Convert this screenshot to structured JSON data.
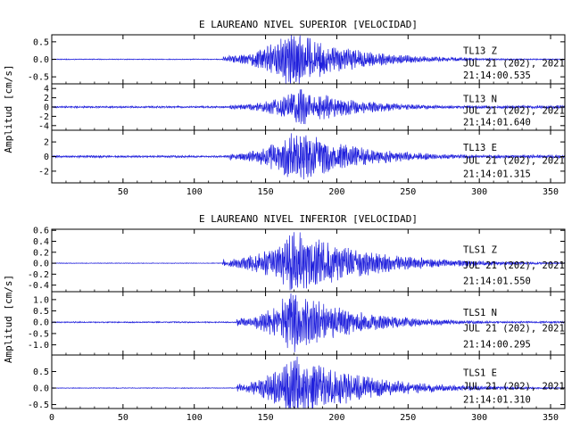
{
  "colors": {
    "trace": "#1f1fdc",
    "axis": "#000000"
  },
  "chart_data": [
    {
      "type": "line",
      "title": "E LAUREANO NIVEL SUPERIOR [VELOCIDAD]",
      "ylabel": "Amplitud [cm/s]",
      "xlabel": "",
      "xlim": [
        0,
        360
      ],
      "x_ticks": [
        "50",
        "100",
        "150",
        "200",
        "250",
        "300",
        "350"
      ],
      "x_tick_values": [
        50,
        100,
        150,
        200,
        250,
        300,
        350
      ],
      "panels": [
        {
          "station": "TL13",
          "component": "Z",
          "date": "JUL 21 (202), 2021",
          "time": "21:14:00.535",
          "ylim": [
            -0.7,
            0.7
          ],
          "y_ticks": [
            "0.5",
            "0.0",
            "-0.5"
          ],
          "y_tick_values": [
            0.5,
            0.0,
            -0.5
          ],
          "envelope": {
            "onset": 120,
            "peak": 168,
            "peak_amp": 0.75,
            "decay": 42,
            "pre_level": 0.015,
            "post_level": 0.02
          }
        },
        {
          "station": "TL13",
          "component": "N",
          "date": "JUL 21 (202), 2021",
          "time": "21:14:01.640",
          "ylim": [
            -5,
            5
          ],
          "y_ticks": [
            "4",
            "2",
            "0",
            "-2",
            "-4"
          ],
          "y_tick_values": [
            4,
            2,
            0,
            -2,
            -4
          ],
          "envelope": {
            "onset": 125,
            "peak": 175,
            "peak_amp": 3.6,
            "decay": 40,
            "pre_level": 0.05,
            "post_level": 0.08
          }
        },
        {
          "station": "TL13",
          "component": "E",
          "date": "JUL 21 (202), 2021",
          "time": "21:14:01.315",
          "ylim": [
            -3.6,
            3.6
          ],
          "y_ticks": [
            "2",
            "0",
            "-2"
          ],
          "y_tick_values": [
            2,
            0,
            -2
          ],
          "envelope": {
            "onset": 125,
            "peak": 170,
            "peak_amp": 3.3,
            "decay": 45,
            "pre_level": 0.04,
            "post_level": 0.06
          }
        }
      ]
    },
    {
      "type": "line",
      "title": "E LAUREANO NIVEL INFERIOR [VELOCIDAD]",
      "ylabel": "Amplitud [cm/s]",
      "xlabel": "",
      "xlim": [
        0,
        360
      ],
      "x_ticks": [
        "0",
        "50",
        "100",
        "150",
        "200",
        "250",
        "300",
        "350"
      ],
      "x_tick_values": [
        0,
        50,
        100,
        150,
        200,
        250,
        300,
        350
      ],
      "panels": [
        {
          "station": "TLS1",
          "component": "Z",
          "date": "JUL 21 (202), 2021",
          "time": "21:14:01.550",
          "ylim": [
            -0.52,
            0.62
          ],
          "y_ticks": [
            "0.6",
            "0.4",
            "0.2",
            "0.0",
            "-0.2",
            "-0.4"
          ],
          "y_tick_values": [
            0.6,
            0.4,
            0.2,
            0.0,
            -0.2,
            -0.4
          ],
          "envelope": {
            "onset": 120,
            "peak": 170,
            "peak_amp": 0.55,
            "decay": 50,
            "pre_level": 0.01,
            "post_level": 0.015
          }
        },
        {
          "station": "TLS1",
          "component": "N",
          "date": "JUL 21 (202), 2021",
          "time": "21:14:00.295",
          "ylim": [
            -1.45,
            1.35
          ],
          "y_ticks": [
            "1.0",
            "0.5",
            "0.0",
            "-0.5",
            "-1.0"
          ],
          "y_tick_values": [
            1.0,
            0.5,
            0.0,
            -0.5,
            -1.0
          ],
          "envelope": {
            "onset": 130,
            "peak": 168,
            "peak_amp": 1.3,
            "decay": 42,
            "pre_level": 0.02,
            "post_level": 0.03
          }
        },
        {
          "station": "TLS1",
          "component": "E",
          "date": "JUL 21 (202), 2021",
          "time": "21:14:01.310",
          "ylim": [
            -0.62,
            1.0
          ],
          "y_ticks": [
            "0.5",
            "0.0",
            "-0.5"
          ],
          "y_tick_values": [
            0.5,
            0.0,
            -0.5
          ],
          "envelope": {
            "onset": 130,
            "peak": 167,
            "peak_amp": 0.95,
            "decay": 48,
            "pre_level": 0.012,
            "post_level": 0.02
          }
        }
      ]
    }
  ]
}
